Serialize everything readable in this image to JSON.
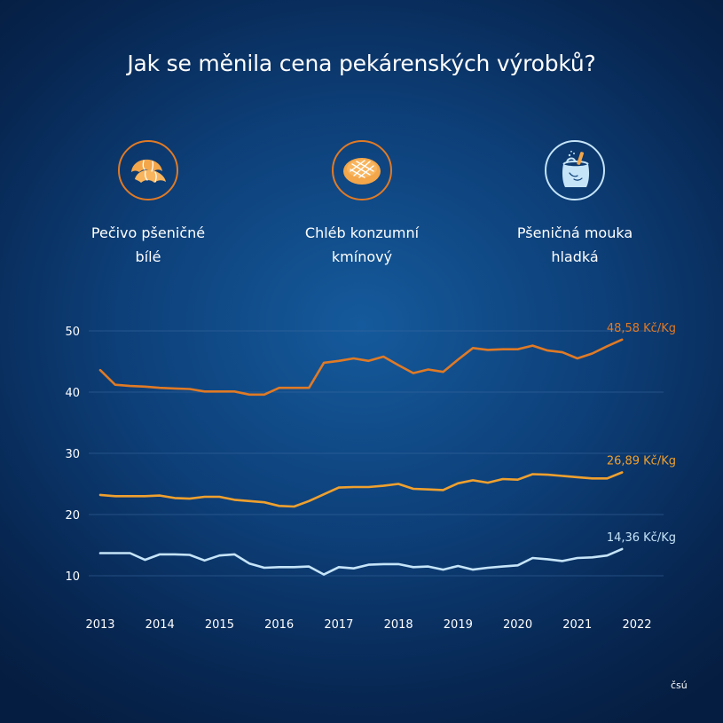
{
  "title": "Jak se měnila cena pekárenských výrobků?",
  "categories": [
    {
      "label": "Pečivo pšeničné\nbílé",
      "icon": "croissant-icon",
      "ring_color": "#e07a25"
    },
    {
      "label": "Chléb konzumní\nkmínový",
      "icon": "bread-loaf-icon",
      "ring_color": "#e07a25"
    },
    {
      "label": "Pšeničná mouka\nhladká",
      "icon": "flour-sack-icon",
      "ring_color": "#c5e4f8"
    }
  ],
  "source": "čsú",
  "chart_data": {
    "type": "line",
    "title": "",
    "xlabel": "",
    "ylabel": "",
    "xlim": [
      2013,
      2022
    ],
    "ylim": [
      5,
      52
    ],
    "yticks": [
      10,
      20,
      30,
      40,
      50
    ],
    "xticks": [
      "2013",
      "2014",
      "2015",
      "2016",
      "2017",
      "2018",
      "2019",
      "2020",
      "2021",
      "2022"
    ],
    "grid": true,
    "series": [
      {
        "color": "#e07a25",
        "end_label": "48,58 Kč/Kg",
        "x": [
          2013.0,
          2013.25,
          2013.5,
          2013.75,
          2014.0,
          2014.25,
          2014.5,
          2014.75,
          2015.0,
          2015.25,
          2015.5,
          2015.75,
          2016.0,
          2016.25,
          2016.5,
          2016.75,
          2017.0,
          2017.25,
          2017.5,
          2017.75,
          2018.0,
          2018.25,
          2018.5,
          2018.75,
          2019.0,
          2019.25,
          2019.5,
          2019.75,
          2020.0,
          2020.25,
          2020.5,
          2020.75,
          2021.0,
          2021.25,
          2021.5,
          2021.75
        ],
        "values": [
          43.6,
          41.2,
          41.0,
          40.9,
          40.7,
          40.6,
          40.5,
          40.1,
          40.1,
          40.1,
          39.6,
          39.6,
          40.7,
          40.7,
          40.7,
          44.8,
          45.1,
          45.5,
          45.1,
          45.8,
          44.4,
          43.1,
          43.7,
          43.3,
          45.3,
          47.2,
          46.9,
          47.0,
          47.0,
          47.6,
          46.8,
          46.5,
          45.5,
          46.3,
          47.5,
          48.58
        ]
      },
      {
        "color": "#efa02e",
        "end_label": "26,89 Kč/Kg",
        "x": [
          2013.0,
          2013.25,
          2013.5,
          2013.75,
          2014.0,
          2014.25,
          2014.5,
          2014.75,
          2015.0,
          2015.25,
          2015.5,
          2015.75,
          2016.0,
          2016.25,
          2016.5,
          2016.75,
          2017.0,
          2017.25,
          2017.5,
          2017.75,
          2018.0,
          2018.25,
          2018.5,
          2018.75,
          2019.0,
          2019.25,
          2019.5,
          2019.75,
          2020.0,
          2020.25,
          2020.5,
          2020.75,
          2021.0,
          2021.25,
          2021.5,
          2021.75
        ],
        "values": [
          23.2,
          23.0,
          23.0,
          23.0,
          23.1,
          22.7,
          22.6,
          22.9,
          22.9,
          22.4,
          22.2,
          22.0,
          21.4,
          21.3,
          22.2,
          23.3,
          24.4,
          24.5,
          24.5,
          24.7,
          25.0,
          24.2,
          24.1,
          24.0,
          25.1,
          25.6,
          25.2,
          25.8,
          25.7,
          26.6,
          26.5,
          26.3,
          26.1,
          25.9,
          25.9,
          26.89
        ]
      },
      {
        "color": "#c5e4f8",
        "end_label": "14,36 Kč/Kg",
        "x": [
          2013.0,
          2013.25,
          2013.5,
          2013.75,
          2014.0,
          2014.25,
          2014.5,
          2014.75,
          2015.0,
          2015.25,
          2015.5,
          2015.75,
          2016.0,
          2016.25,
          2016.5,
          2016.75,
          2017.0,
          2017.25,
          2017.5,
          2017.75,
          2018.0,
          2018.25,
          2018.5,
          2018.75,
          2019.0,
          2019.25,
          2019.5,
          2019.75,
          2020.0,
          2020.25,
          2020.5,
          2020.75,
          2021.0,
          2021.25,
          2021.5,
          2021.75
        ],
        "values": [
          13.7,
          13.7,
          13.7,
          12.6,
          13.5,
          13.5,
          13.4,
          12.5,
          13.3,
          13.5,
          12.0,
          11.3,
          11.4,
          11.4,
          11.5,
          10.2,
          11.4,
          11.2,
          11.8,
          11.9,
          11.9,
          11.4,
          11.5,
          11.0,
          11.6,
          11.0,
          11.3,
          11.5,
          11.7,
          12.9,
          12.7,
          12.4,
          12.9,
          13.0,
          13.3,
          14.36
        ]
      }
    ]
  }
}
